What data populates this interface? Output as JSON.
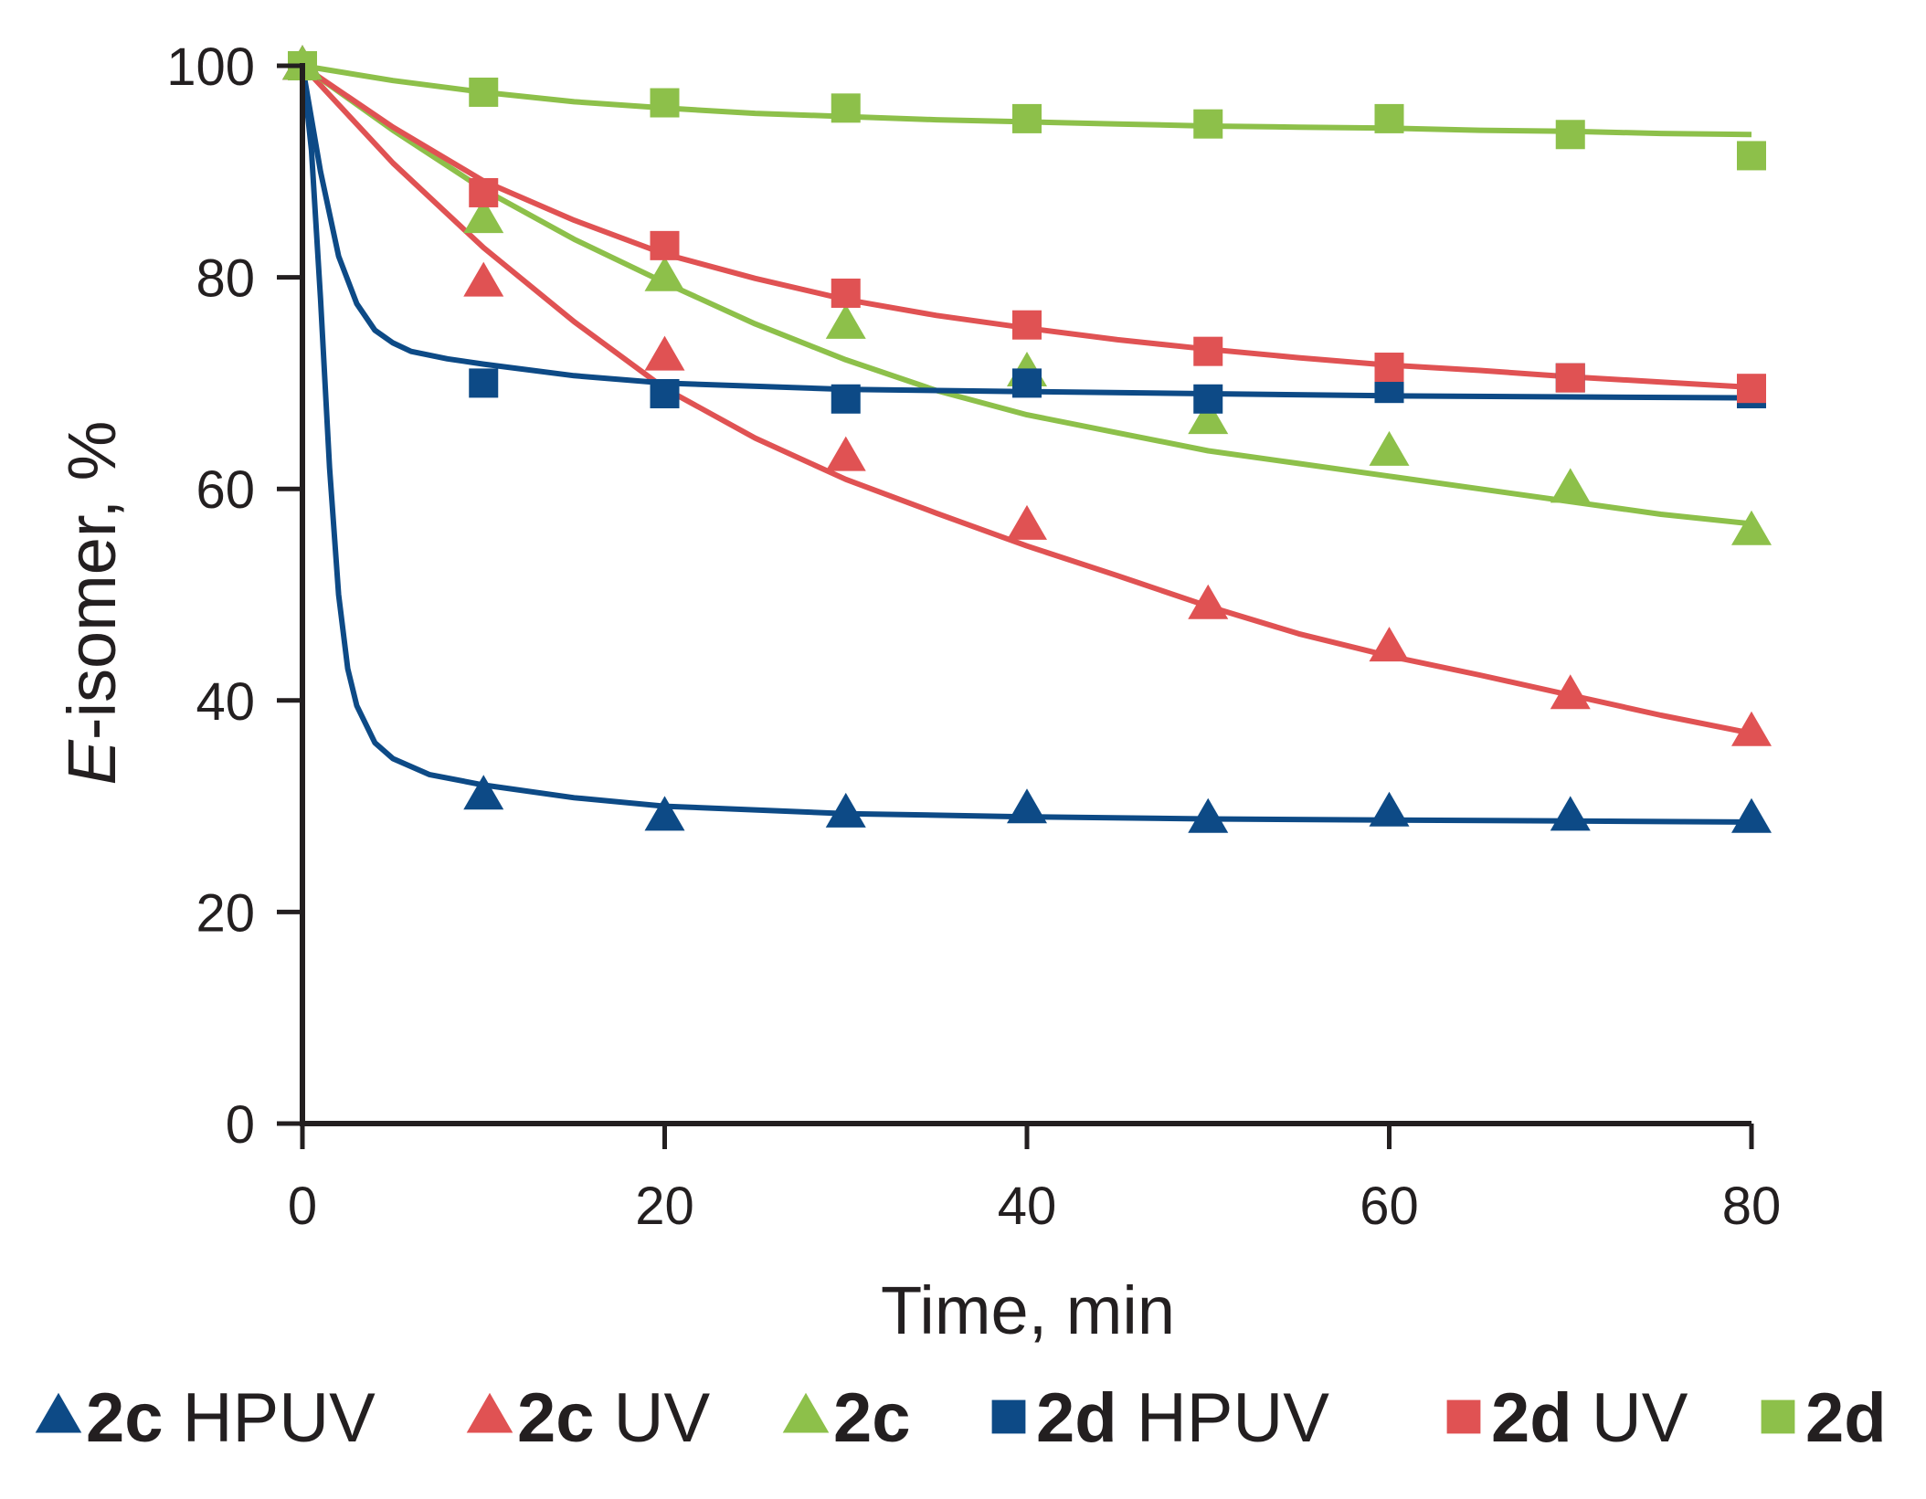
{
  "chart_data": {
    "type": "scatter",
    "xlabel": "Time, min",
    "ylabel_italic": "E",
    "ylabel_rest": "-isomer, %",
    "xlim": [
      0,
      80
    ],
    "ylim": [
      0,
      100
    ],
    "xticks": [
      0,
      20,
      40,
      60,
      80
    ],
    "yticks": [
      0,
      20,
      40,
      60,
      80,
      100
    ],
    "x_tick_labels": [
      "0",
      "20",
      "40",
      "60",
      "80"
    ],
    "y_tick_labels": [
      "0",
      "20",
      "40",
      "60",
      "80",
      "100"
    ],
    "grid": false,
    "legend_position": "bottom",
    "series": [
      {
        "name": "2c HPUV",
        "bold": "2c",
        "suffix": "HPUV",
        "marker": "triangle",
        "color": "#0d4a86",
        "x": [
          0,
          10,
          20,
          30,
          40,
          50,
          60,
          70,
          80
        ],
        "y": [
          100,
          31,
          29,
          29.3,
          29.7,
          28.8,
          29.4,
          29,
          28.8
        ],
        "fit": {
          "x": [
            0,
            0.5,
            1,
            1.5,
            2,
            2.5,
            3,
            4,
            5,
            7,
            10,
            15,
            20,
            30,
            40,
            50,
            60,
            70,
            80
          ],
          "y": [
            100,
            92,
            78,
            62,
            50,
            43,
            39.5,
            36,
            34.5,
            33,
            32,
            30.8,
            30,
            29.3,
            29,
            28.8,
            28.7,
            28.6,
            28.5
          ]
        }
      },
      {
        "name": "2c UV",
        "bold": "2c",
        "suffix": "UV",
        "marker": "triangle",
        "color": "#e05253",
        "x": [
          0,
          10,
          20,
          30,
          40,
          50,
          60,
          70,
          80
        ],
        "y": [
          100,
          79.5,
          72.5,
          63,
          56.5,
          49,
          45,
          40.5,
          37
        ],
        "fit": {
          "x": [
            0,
            5,
            10,
            15,
            20,
            25,
            30,
            35,
            40,
            45,
            50,
            55,
            60,
            65,
            70,
            75,
            80
          ],
          "y": [
            100,
            90.8,
            82.8,
            75.8,
            69.5,
            64.8,
            60.9,
            57.7,
            54.6,
            51.8,
            48.9,
            46.3,
            44.2,
            42.4,
            40.5,
            38.6,
            36.9
          ]
        }
      },
      {
        "name": "2c",
        "bold": "2c",
        "suffix": "",
        "marker": "triangle",
        "color": "#8dc04a",
        "x": [
          0,
          10,
          20,
          30,
          40,
          50,
          60,
          70,
          80
        ],
        "y": [
          100,
          85.5,
          80,
          75.5,
          71,
          66.5,
          63.5,
          60,
          56
        ],
        "fit": {
          "x": [
            0,
            5,
            10,
            15,
            20,
            25,
            30,
            35,
            40,
            45,
            50,
            55,
            60,
            65,
            70,
            75,
            80
          ],
          "y": [
            100,
            93.9,
            88.3,
            83.6,
            79.5,
            75.6,
            72.2,
            69.3,
            67,
            65.3,
            63.6,
            62.4,
            61.2,
            60,
            58.8,
            57.6,
            56.7
          ]
        }
      },
      {
        "name": "2d HPUV",
        "bold": "2d",
        "suffix": "HPUV",
        "marker": "square",
        "color": "#0d4a86",
        "x": [
          0,
          10,
          20,
          30,
          40,
          50,
          60,
          70,
          80
        ],
        "y": [
          100,
          70,
          69,
          68.5,
          70,
          68.5,
          69.5,
          70.5,
          69
        ],
        "fit": {
          "x": [
            0,
            1,
            2,
            3,
            4,
            5,
            6,
            8,
            10,
            15,
            20,
            30,
            40,
            50,
            60,
            70,
            80
          ],
          "y": [
            100,
            90,
            82,
            77.5,
            75,
            73.8,
            73,
            72.3,
            71.8,
            70.7,
            70,
            69.4,
            69.2,
            69,
            68.8,
            68.7,
            68.6
          ]
        }
      },
      {
        "name": "2d UV",
        "bold": "2d",
        "suffix": "UV",
        "marker": "square",
        "color": "#e05253",
        "x": [
          0,
          10,
          20,
          30,
          40,
          50,
          60,
          70,
          80
        ],
        "y": [
          100,
          88,
          83,
          78.5,
          75.5,
          73,
          71.5,
          70.5,
          69.5
        ],
        "fit": {
          "x": [
            0,
            5,
            10,
            15,
            20,
            25,
            30,
            35,
            40,
            45,
            50,
            55,
            60,
            65,
            70,
            75,
            80
          ],
          "y": [
            100,
            94.2,
            89.1,
            85.4,
            82.2,
            79.9,
            77.9,
            76.4,
            75.2,
            74.1,
            73.2,
            72.4,
            71.7,
            71.2,
            70.6,
            70.1,
            69.6
          ]
        }
      },
      {
        "name": "2d",
        "bold": "2d",
        "suffix": "",
        "marker": "square",
        "color": "#8dc04a",
        "x": [
          0,
          10,
          20,
          30,
          40,
          50,
          60,
          70,
          80
        ],
        "y": [
          100,
          97.5,
          96.5,
          96,
          95,
          94.5,
          95,
          93.5,
          91.5
        ],
        "fit": {
          "x": [
            0,
            5,
            10,
            15,
            20,
            25,
            30,
            35,
            40,
            45,
            50,
            55,
            60,
            65,
            70,
            75,
            80
          ],
          "y": [
            100,
            98.6,
            97.5,
            96.6,
            96,
            95.5,
            95.2,
            94.9,
            94.7,
            94.5,
            94.3,
            94.2,
            94.1,
            93.9,
            93.8,
            93.6,
            93.5
          ]
        }
      }
    ]
  }
}
